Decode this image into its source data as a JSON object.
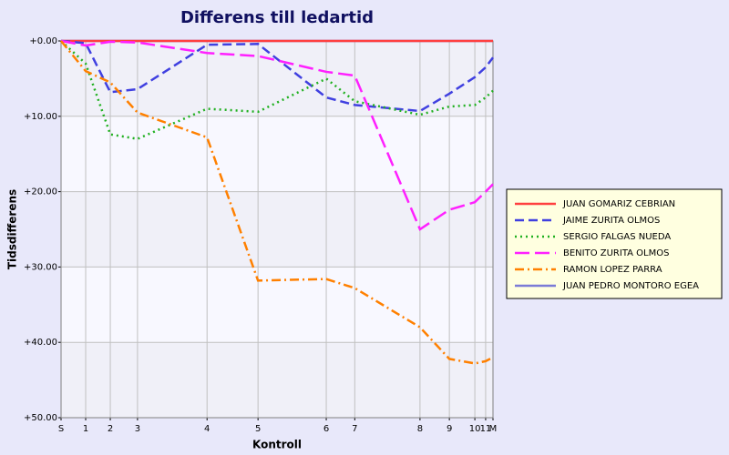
{
  "chart_data": {
    "type": "line",
    "title": "Differens till ledartid",
    "x_label": "Kontroll",
    "y_label": "Tidsdifferens",
    "x": [
      0,
      5.7,
      11.4,
      17.7,
      33.8,
      45.6,
      61.4,
      68.0,
      83.1,
      89.9,
      95.8,
      98.3,
      100
    ],
    "xlim": [
      0,
      100
    ],
    "xticks": [
      {
        "value": 0,
        "label": "S"
      },
      {
        "value": 5.7,
        "label": "1"
      },
      {
        "value": 11.4,
        "label": "2"
      },
      {
        "value": 17.7,
        "label": "3"
      },
      {
        "value": 33.8,
        "label": "4"
      },
      {
        "value": 45.6,
        "label": "5"
      },
      {
        "value": 61.4,
        "label": "6"
      },
      {
        "value": 68.0,
        "label": "7"
      },
      {
        "value": 83.1,
        "label": "8"
      },
      {
        "value": 89.9,
        "label": "9"
      },
      {
        "value": 95.8,
        "label": "10"
      },
      {
        "value": 98.3,
        "label": "11"
      },
      {
        "value": 100,
        "label": "M"
      }
    ],
    "ylim": [
      0,
      50
    ],
    "y_inverted": true,
    "yticks": [
      {
        "value": 0,
        "label": "+0.00"
      },
      {
        "value": 10,
        "label": "+10.00"
      },
      {
        "value": 20,
        "label": "+20.00"
      },
      {
        "value": 30,
        "label": "+30.00"
      },
      {
        "value": 40,
        "label": "+40.00"
      },
      {
        "value": 50,
        "label": "+50.00"
      }
    ],
    "grid": true,
    "legend": "right",
    "series": [
      {
        "name": "JUAN PEDRO MONTORO EGEA",
        "color": "#7b7bd6",
        "style": "solid",
        "values": [
          0,
          0,
          0,
          0,
          0,
          0,
          0,
          0,
          0,
          0,
          0,
          0,
          0
        ]
      },
      {
        "name": "JUAN GOMARIZ CEBRIAN",
        "color": "#ff4040",
        "style": "solid",
        "values": [
          0,
          0,
          0,
          0,
          0,
          0,
          0,
          0,
          0,
          0,
          0,
          0,
          0
        ]
      },
      {
        "name": "JAIME ZURITA OLMOS",
        "color": "#4040e0",
        "style": "dash",
        "values": [
          0,
          0.3,
          6.8,
          6.4,
          0.5,
          0.4,
          7.5,
          8.5,
          9.3,
          7.0,
          4.8,
          3.5,
          2.2
        ]
      },
      {
        "name": "SERGIO FALGAS NUEDA",
        "color": "#20b020",
        "style": "dot",
        "values": [
          0,
          3.0,
          12.4,
          13.0,
          9.0,
          9.4,
          5.0,
          8.0,
          9.8,
          8.7,
          8.5,
          7.5,
          6.6
        ]
      },
      {
        "name": "BENITO ZURITA OLMOS",
        "color": "#ff20ff",
        "style": "longdash",
        "values": [
          0,
          0.6,
          0.1,
          0.2,
          1.6,
          2.0,
          4.1,
          4.6,
          25.0,
          22.4,
          21.4,
          20.0,
          19.0
        ]
      },
      {
        "name": "RAMON LOPEZ PARRA",
        "color": "#ff8000",
        "style": "dashdot",
        "values": [
          0,
          4.0,
          5.5,
          9.5,
          12.8,
          31.8,
          31.6,
          32.8,
          38.0,
          42.2,
          42.8,
          42.5,
          42.0
        ]
      }
    ],
    "legend_order": [
      1,
      2,
      3,
      4,
      5,
      0
    ]
  }
}
